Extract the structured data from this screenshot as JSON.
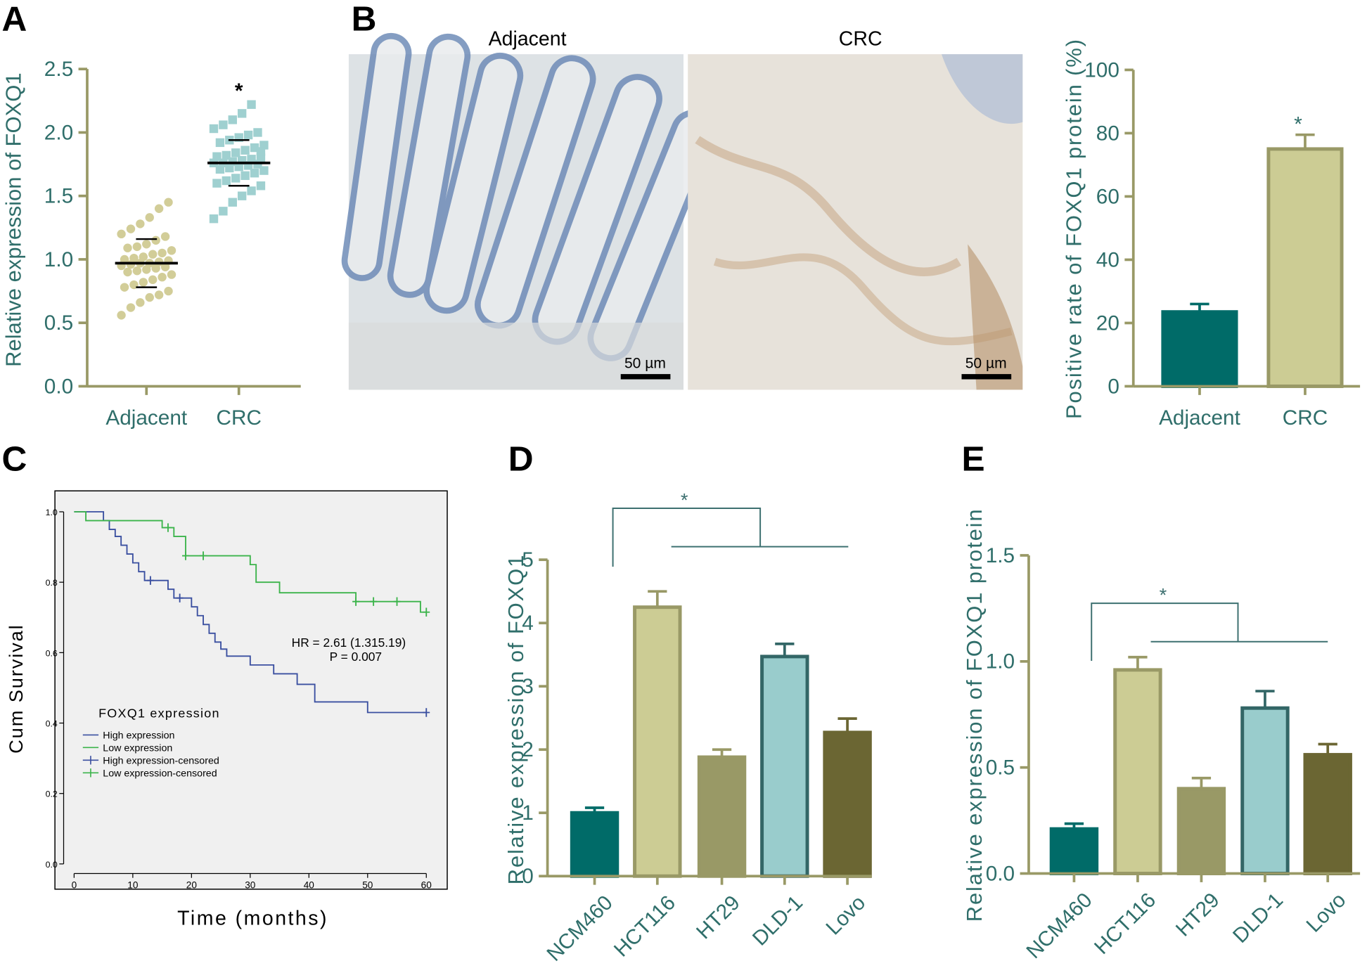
{
  "chart_data": [
    {
      "panel": "A",
      "type": "dotplot",
      "ylabel": "Relative expression of FOXQ1",
      "categories": [
        "Adjacent",
        "CRC"
      ],
      "values": [
        [
          0.56,
          0.62,
          0.66,
          0.7,
          0.72,
          0.75,
          0.78,
          0.8,
          0.82,
          0.84,
          0.86,
          0.88,
          0.9,
          0.91,
          0.92,
          0.93,
          0.94,
          0.95,
          0.96,
          0.97,
          0.97,
          0.98,
          0.99,
          1.0,
          1.01,
          1.02,
          1.04,
          1.05,
          1.07,
          1.09,
          1.1,
          1.12,
          1.15,
          1.18,
          1.2,
          1.24,
          1.28,
          1.33,
          1.4,
          1.45
        ],
        [
          1.32,
          1.38,
          1.45,
          1.5,
          1.54,
          1.58,
          1.6,
          1.62,
          1.64,
          1.66,
          1.68,
          1.7,
          1.71,
          1.72,
          1.73,
          1.74,
          1.75,
          1.76,
          1.76,
          1.77,
          1.78,
          1.79,
          1.8,
          1.81,
          1.82,
          1.84,
          1.86,
          1.88,
          1.9,
          1.92,
          1.94,
          1.96,
          1.98,
          2.0,
          2.03,
          2.06,
          2.1,
          2.15,
          2.22,
          1.85
        ]
      ],
      "means": [
        0.97,
        1.76
      ],
      "sd": [
        0.19,
        0.18
      ],
      "colors": [
        "#d2cd98",
        "#9fd0d0"
      ],
      "annotations": [
        null,
        "*"
      ],
      "ylim": [
        0,
        2.5
      ],
      "yticks": [
        {
          "value": 0,
          "label": "0.0"
        },
        0.5,
        {
          "value": 1,
          "label": "1.0"
        },
        1.5,
        {
          "value": 2,
          "label": "2.0"
        },
        2.5
      ]
    },
    {
      "panel": "B",
      "type": "bar",
      "images": {
        "labels": [
          "Adjacent",
          "CRC"
        ],
        "scale_bar": "50 µm"
      },
      "ylabel": "Positive rate of FOXQ1 protein (%)",
      "categories": [
        "Adjacent",
        "CRC"
      ],
      "values": [
        23.5,
        75
      ],
      "errors": [
        2.5,
        4.5
      ],
      "colors": [
        "#006b68",
        "#cccc94"
      ],
      "edge_colors": [
        "#006b68",
        "#999966"
      ],
      "annotations": [
        null,
        "*"
      ],
      "ylim": [
        0,
        100
      ],
      "yticks": [
        0,
        20,
        40,
        60,
        80,
        100
      ]
    },
    {
      "panel": "C",
      "type": "survival",
      "xlabel": "Time (months)",
      "ylabel": "Cum Survival",
      "legend_title": "FOXQ1 expression",
      "series": [
        {
          "name": "High expression",
          "color": "#3a4fa0",
          "style": "step",
          "x": [
            0,
            5,
            6,
            7,
            8,
            9,
            10,
            11,
            12,
            16,
            17,
            20,
            21,
            22,
            23,
            24,
            25,
            26,
            30,
            34,
            38,
            41,
            50,
            60
          ],
          "values": [
            1,
            0.975,
            0.95,
            0.93,
            0.905,
            0.88,
            0.855,
            0.83,
            0.805,
            0.78,
            0.755,
            0.73,
            0.705,
            0.68,
            0.655,
            0.63,
            0.61,
            0.59,
            0.565,
            0.54,
            0.51,
            0.46,
            0.43,
            0.43
          ]
        },
        {
          "name": "Low expression",
          "color": "#3cb44b",
          "style": "step",
          "x": [
            0,
            2,
            15,
            17,
            19,
            30,
            31,
            35,
            48,
            59,
            60
          ],
          "values": [
            1,
            0.975,
            0.955,
            0.93,
            0.875,
            0.85,
            0.8,
            0.77,
            0.745,
            0.715,
            0.715
          ]
        },
        {
          "name": "High expression-censored",
          "color": "#3a4fa0",
          "style": "censor",
          "x": [
            13,
            18,
            60
          ],
          "values": [
            0.805,
            0.755,
            0.43
          ]
        },
        {
          "name": "Low expression-censored",
          "color": "#3cb44b",
          "style": "censor",
          "x": [
            16,
            19,
            22,
            48,
            51,
            55,
            60
          ],
          "values": [
            0.955,
            0.875,
            0.875,
            0.745,
            0.745,
            0.745,
            0.715
          ]
        }
      ],
      "annotations": [
        "HR = 2.61 (1.315.19)",
        "P = 0.007"
      ],
      "xlim": [
        0,
        60
      ],
      "xticks": [
        0,
        10,
        20,
        30,
        40,
        50,
        60
      ],
      "ylim": [
        0,
        1
      ],
      "yticks": [
        {
          "value": 0,
          "label": "0.0"
        },
        0.2,
        0.4,
        0.6,
        0.8,
        {
          "value": 1,
          "label": "1.0"
        }
      ]
    },
    {
      "panel": "D",
      "type": "bar",
      "ylabel": "Relative expression of FOXQ1",
      "categories": [
        "NCM460",
        "HCT116",
        "HT29",
        "DLD-1",
        "Lovo"
      ],
      "values": [
        1.0,
        4.25,
        1.88,
        3.47,
        2.27
      ],
      "errors": [
        0.08,
        0.25,
        0.12,
        0.2,
        0.22
      ],
      "colors": [
        "#006b68",
        "#cccc94",
        "#999966",
        "#99cccc",
        "#6b6633"
      ],
      "edge_colors": [
        "#006b68",
        "#999966",
        "#999966",
        "#336666",
        "#6b6633"
      ],
      "significance": "*",
      "ylim": [
        0,
        5
      ],
      "yticks": [
        0,
        1,
        2,
        3,
        4,
        5
      ]
    },
    {
      "panel": "E",
      "type": "bar",
      "ylabel": "Relative expression of FOXQ1 protein",
      "categories": [
        "NCM460",
        "HCT116",
        "HT29",
        "DLD-1",
        "Lovo"
      ],
      "values": [
        0.21,
        0.96,
        0.4,
        0.78,
        0.56
      ],
      "errors": [
        0.025,
        0.06,
        0.05,
        0.08,
        0.05
      ],
      "colors": [
        "#006b68",
        "#cccc94",
        "#999966",
        "#99cccc",
        "#6b6633"
      ],
      "edge_colors": [
        "#006b68",
        "#999966",
        "#999966",
        "#336666",
        "#6b6633"
      ],
      "significance": "*",
      "ylim": [
        0,
        1.5
      ],
      "yticks": [
        {
          "value": 0,
          "label": "0.0"
        },
        0.5,
        {
          "value": 1,
          "label": "1.0"
        },
        1.5
      ]
    }
  ]
}
